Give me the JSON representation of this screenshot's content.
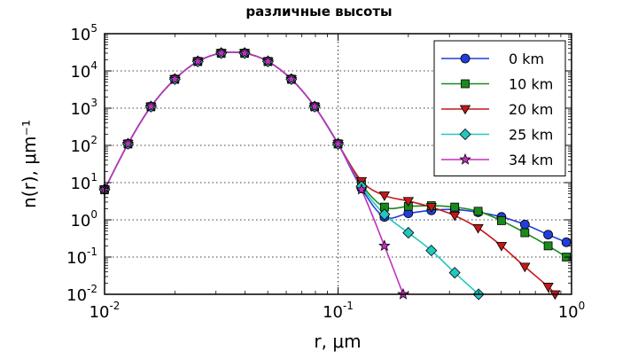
{
  "chart_data": {
    "type": "line",
    "title": "различные высоты",
    "xlabel": "r, μm",
    "ylabel": "n(r), μm⁻¹",
    "xscale": "log",
    "yscale": "log",
    "xlim": [
      0.01,
      1.0
    ],
    "ylim": [
      0.01,
      100000
    ],
    "x_ticks": [
      {
        "value": 0.01,
        "base": "10",
        "exp": "-2"
      },
      {
        "value": 0.1,
        "base": "10",
        "exp": "-1"
      },
      {
        "value": 1.0,
        "base": "10",
        "exp": "0"
      }
    ],
    "y_ticks": [
      {
        "value": 0.01,
        "base": "10",
        "exp": "-2"
      },
      {
        "value": 0.1,
        "base": "10",
        "exp": "-1"
      },
      {
        "value": 1,
        "base": "10",
        "exp": "0"
      },
      {
        "value": 10,
        "base": "10",
        "exp": "1"
      },
      {
        "value": 100,
        "base": "10",
        "exp": "2"
      },
      {
        "value": 1000,
        "base": "10",
        "exp": "3"
      },
      {
        "value": 10000,
        "base": "10",
        "exp": "4"
      },
      {
        "value": 100000,
        "base": "10",
        "exp": "5"
      }
    ],
    "grid": true,
    "legend_position": "top-right",
    "series": [
      {
        "name": "0 km",
        "color": "#1f3fd8",
        "marker": "circle",
        "x": [
          0.01,
          0.0126,
          0.0158,
          0.02,
          0.0251,
          0.0316,
          0.0398,
          0.0501,
          0.0631,
          0.0794,
          0.1,
          0.126,
          0.158,
          0.2,
          0.251,
          0.316,
          0.398,
          0.501,
          0.631,
          0.794,
          0.95
        ],
        "y": [
          6.5,
          110,
          1100,
          6000,
          18000,
          30000,
          30000,
          18000,
          6000,
          1100,
          110,
          7,
          1.2,
          1.5,
          1.8,
          1.9,
          1.6,
          1.2,
          0.75,
          0.4,
          0.25
        ]
      },
      {
        "name": "10 km",
        "color": "#1a8a1a",
        "marker": "square",
        "x": [
          0.01,
          0.0126,
          0.0158,
          0.02,
          0.0251,
          0.0316,
          0.0398,
          0.0501,
          0.0631,
          0.0794,
          0.1,
          0.126,
          0.158,
          0.2,
          0.251,
          0.316,
          0.398,
          0.501,
          0.631,
          0.794,
          0.95
        ],
        "y": [
          6.5,
          110,
          1100,
          6000,
          18000,
          30000,
          30000,
          18000,
          6000,
          1100,
          110,
          9,
          2.2,
          2.3,
          2.4,
          2.2,
          1.7,
          0.95,
          0.45,
          0.2,
          0.1
        ]
      },
      {
        "name": "20 km",
        "color": "#c41818",
        "marker": "triangle-down",
        "x": [
          0.01,
          0.0126,
          0.0158,
          0.02,
          0.0251,
          0.0316,
          0.0398,
          0.0501,
          0.0631,
          0.0794,
          0.1,
          0.126,
          0.158,
          0.2,
          0.251,
          0.316,
          0.398,
          0.501,
          0.631,
          0.794,
          0.85
        ],
        "y": [
          6.5,
          110,
          1100,
          6000,
          18000,
          30000,
          30000,
          18000,
          6000,
          1100,
          110,
          11,
          4.5,
          3.2,
          2.2,
          1.3,
          0.6,
          0.2,
          0.055,
          0.016,
          0.01
        ]
      },
      {
        "name": "25 km",
        "color": "#20c8c0",
        "marker": "diamond",
        "x": [
          0.01,
          0.0126,
          0.0158,
          0.02,
          0.0251,
          0.0316,
          0.0398,
          0.0501,
          0.0631,
          0.0794,
          0.1,
          0.126,
          0.158,
          0.2,
          0.251,
          0.316,
          0.4
        ],
        "y": [
          6.5,
          110,
          1100,
          6000,
          18000,
          30000,
          30000,
          18000,
          6000,
          1100,
          110,
          8,
          1.4,
          0.45,
          0.15,
          0.038,
          0.01
        ]
      },
      {
        "name": "34 km",
        "color": "#c030c0",
        "marker": "star",
        "x": [
          0.01,
          0.0126,
          0.0158,
          0.02,
          0.0251,
          0.0316,
          0.0398,
          0.0501,
          0.0631,
          0.0794,
          0.1,
          0.126,
          0.158,
          0.19
        ],
        "y": [
          6.5,
          110,
          1100,
          6000,
          18000,
          30000,
          30000,
          18000,
          6000,
          1100,
          110,
          6.5,
          0.2,
          0.01
        ]
      }
    ]
  }
}
